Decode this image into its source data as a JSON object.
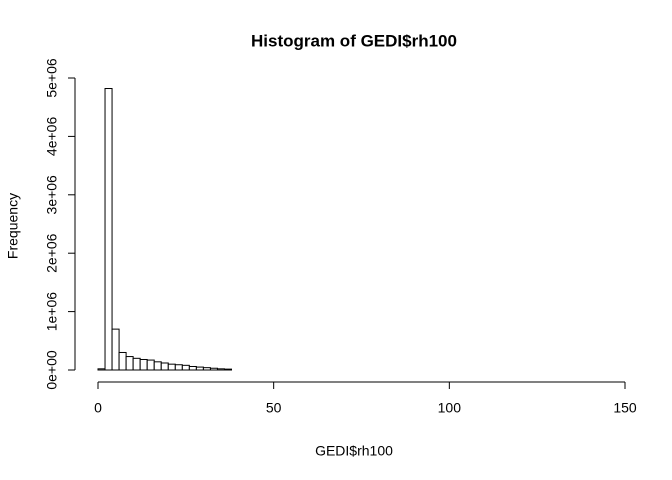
{
  "chart_data": {
    "type": "histogram",
    "title": "Histogram of GEDI$rh100",
    "x_label": "GEDI$rh100",
    "y_label": "Frequency",
    "bins": [
      0,
      2,
      4,
      6,
      8,
      10,
      12,
      14,
      16,
      18,
      20,
      22,
      24,
      26,
      28,
      30,
      32,
      34,
      36,
      38,
      40,
      42,
      44,
      46,
      48,
      50,
      52,
      54,
      56,
      58,
      60,
      62,
      64,
      66,
      68,
      70,
      72,
      74,
      76,
      78,
      80,
      82,
      84,
      86,
      88,
      90,
      92,
      94,
      96,
      98,
      100,
      102,
      104,
      106,
      108,
      110,
      112,
      114,
      116,
      118,
      120,
      122,
      124,
      126,
      128,
      130,
      132,
      134,
      136,
      138,
      140,
      142,
      144,
      146
    ],
    "values": [
      20000,
      4820000,
      700000,
      300000,
      230000,
      200000,
      180000,
      170000,
      140000,
      120000,
      100000,
      90000,
      80000,
      60000,
      50000,
      40000,
      30000,
      20000,
      15000,
      0,
      0,
      0,
      0,
      0,
      0,
      0,
      0,
      0,
      0,
      0,
      0,
      0,
      0,
      0,
      0,
      0,
      0,
      0,
      0,
      0,
      0,
      0,
      0,
      0,
      0,
      0,
      0,
      0,
      0,
      0,
      0,
      0,
      0,
      0,
      0,
      0,
      0,
      0,
      0,
      0,
      0,
      0,
      0,
      0,
      0,
      0,
      0,
      0,
      0,
      0,
      0,
      0,
      0
    ],
    "color": "#ffffff",
    "edge_color": "#000000",
    "xlim": [
      0,
      150
    ],
    "xticks": [
      0,
      50,
      100,
      150
    ],
    "ylim": [
      0,
      5000000
    ],
    "yticks": [
      {
        "value": 0,
        "label": "0e+00"
      },
      {
        "value": 1000000,
        "label": "1e+06"
      },
      {
        "value": 2000000,
        "label": "2e+06"
      },
      {
        "value": 3000000,
        "label": "3e+06"
      },
      {
        "value": 4000000,
        "label": "4e+06"
      },
      {
        "value": 5000000,
        "label": "5e+06"
      }
    ]
  }
}
